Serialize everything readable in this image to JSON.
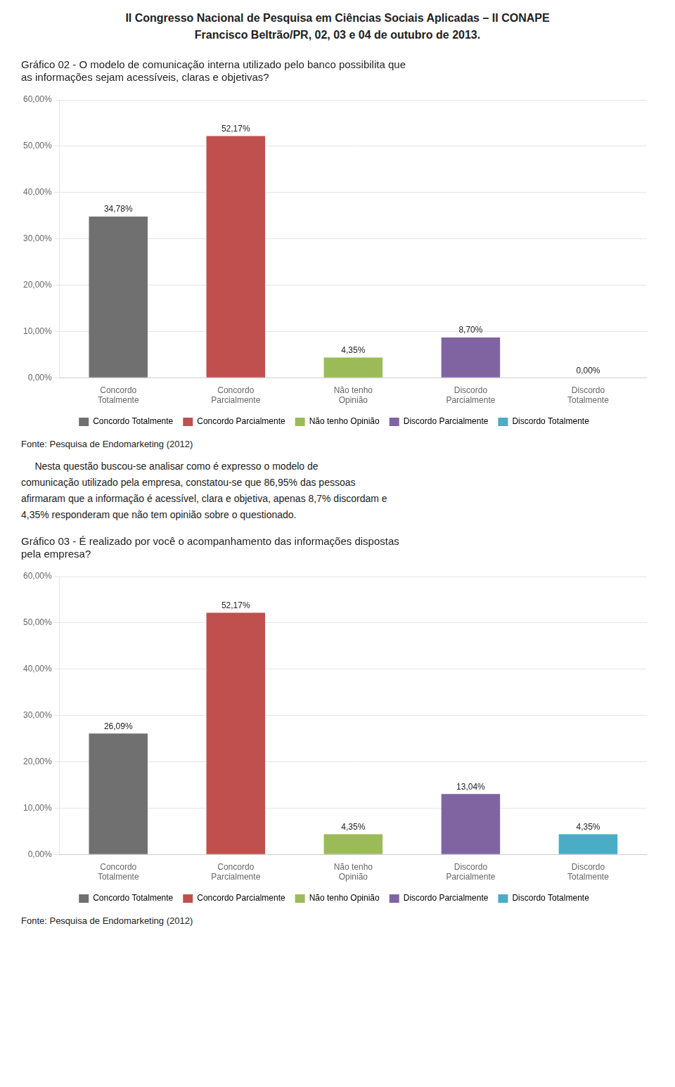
{
  "header": "II Congresso Nacional de Pesquisa em Ciências Sociais Aplicadas – II CONAPE\nFrancisco Beltrão/PR, 02, 03 e 04 de outubro de 2013.",
  "chart_data": [
    {
      "type": "bar",
      "title": "Gráfico 02 - O modelo de comunicação interna utilizado pelo banco possibilita que\nas informações sejam acessíveis, claras e objetivas?",
      "categories": [
        "Concordo\nTotalmente",
        "Concordo\nParcialmente",
        "Não tenho\nOpinião",
        "Discordo\nParcialmente",
        "Discordo\nTotalmente"
      ],
      "values": [
        34.78,
        52.17,
        4.35,
        8.7,
        0.0
      ],
      "value_labels": [
        "34,78%",
        "52,17%",
        "4,35%",
        "8,70%",
        "0,00%"
      ],
      "data_labels": true,
      "colors": [
        "#707070",
        "#C0504D",
        "#9BBB59",
        "#8064A2",
        "#4BACC6"
      ],
      "legend_labels": [
        "Concordo Totalmente",
        "Concordo Parcialmente",
        "Não tenho Opinião",
        "Discordo Parcialmente",
        "Discordo Totalmente"
      ],
      "legend": "bottom",
      "grid": true,
      "ylim": [
        0,
        60
      ],
      "yticks": [
        {
          "value": 0,
          "label": "0,00%"
        },
        {
          "value": 10,
          "label": "10,00%"
        },
        {
          "value": 20,
          "label": "20,00%"
        },
        {
          "value": 30,
          "label": "30,00%"
        },
        {
          "value": 40,
          "label": "40,00%"
        },
        {
          "value": 50,
          "label": "50,00%"
        },
        {
          "value": 60,
          "label": "60,00%"
        }
      ],
      "annotations": [
        "Fonte: Pesquisa de Endomarketing (2012)",
        "     Nesta questão buscou-se analisar como é expresso o modelo de\ncomunicação utilizado pela empresa, constatou-se que 86,95% das pessoas\nafirmaram que a informação é acessível, clara e objetiva, apenas 8,7% discordam e\n4,35% responderam que não tem opinião sobre o questionado."
      ]
    },
    {
      "type": "bar",
      "title": "Gráfico 03 - É realizado por você o acompanhamento das informações dispostas\npela empresa?",
      "categories": [
        "Concordo\nTotalmente",
        "Concordo\nParcialmente",
        "Não tenho\nOpinião",
        "Discordo\nParcialmente",
        "Discordo\nTotalmente"
      ],
      "values": [
        26.09,
        52.17,
        4.35,
        13.04,
        4.35
      ],
      "value_labels": [
        "26,09%",
        "52,17%",
        "4,35%",
        "13,04%",
        "4,35%"
      ],
      "data_labels": true,
      "colors": [
        "#707070",
        "#C0504D",
        "#9BBB59",
        "#8064A2",
        "#4BACC6"
      ],
      "legend_labels": [
        "Concordo Totalmente",
        "Concordo Parcialmente",
        "Não tenho Opinião",
        "Discordo Parcialmente",
        "Discordo Totalmente"
      ],
      "legend": "bottom",
      "grid": true,
      "ylim": [
        0,
        60
      ],
      "yticks": [
        {
          "value": 0,
          "label": "0,00%"
        },
        {
          "value": 10,
          "label": "10,00%"
        },
        {
          "value": 20,
          "label": "20,00%"
        },
        {
          "value": 30,
          "label": "30,00%"
        },
        {
          "value": 40,
          "label": "40,00%"
        },
        {
          "value": 50,
          "label": "50,00%"
        },
        {
          "value": 60,
          "label": "60,00%"
        }
      ],
      "annotations": [
        "Fonte: Pesquisa de Endomarketing (2012)"
      ]
    }
  ]
}
